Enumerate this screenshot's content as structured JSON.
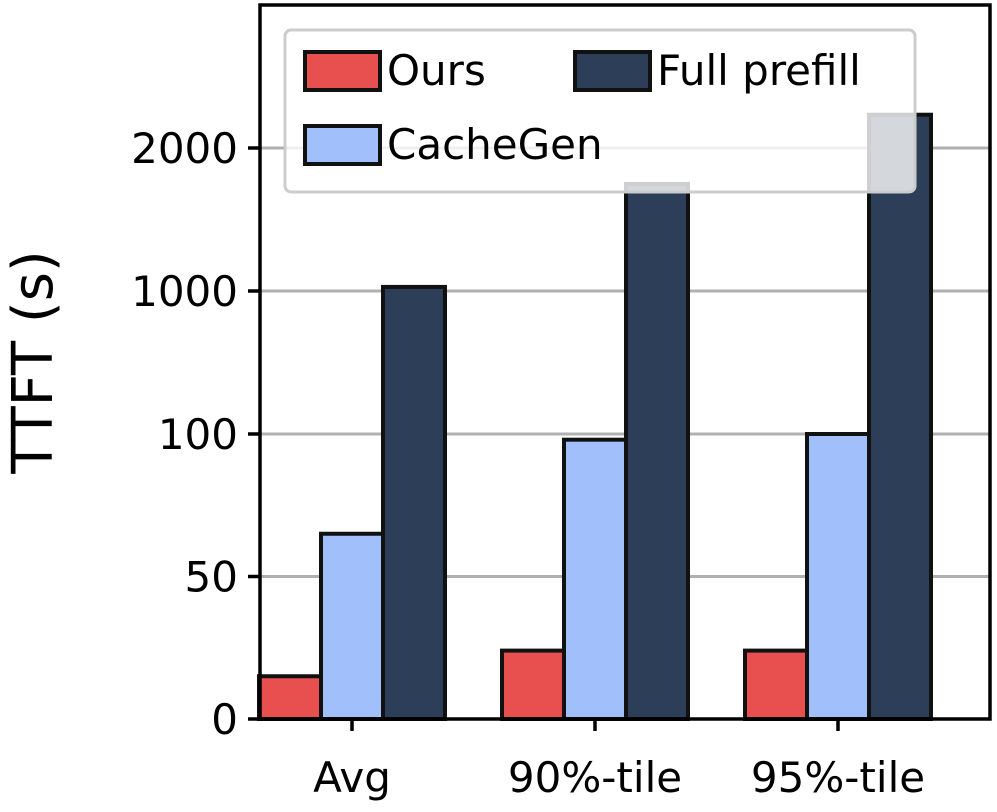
{
  "chart_data": {
    "type": "bar",
    "ylabel": "TTFT (s)",
    "xlabel": "",
    "categories": [
      "Avg",
      "90%-tile",
      "95%-tile"
    ],
    "yticks": [
      0,
      50,
      100,
      1000,
      2000
    ],
    "ytick_labels": [
      "0",
      "50",
      "100",
      "1000",
      "2000"
    ],
    "y_scale": "piecewise: 0–100 linear, 100–2000 in proportion to log10",
    "grid": "horizontal",
    "legend_position": "top",
    "series": [
      {
        "name": "Ours",
        "color": "#e8504f",
        "values": [
          15,
          24,
          24
        ]
      },
      {
        "name": "CacheGen",
        "color": "#a1c0fb",
        "values": [
          65,
          98,
          100
        ]
      },
      {
        "name": "Full prefill",
        "color": "#2c3e58",
        "values": [
          1020,
          1680,
          2350
        ]
      }
    ],
    "legend_order": [
      "Ours",
      "Full prefill",
      "CacheGen"
    ]
  }
}
